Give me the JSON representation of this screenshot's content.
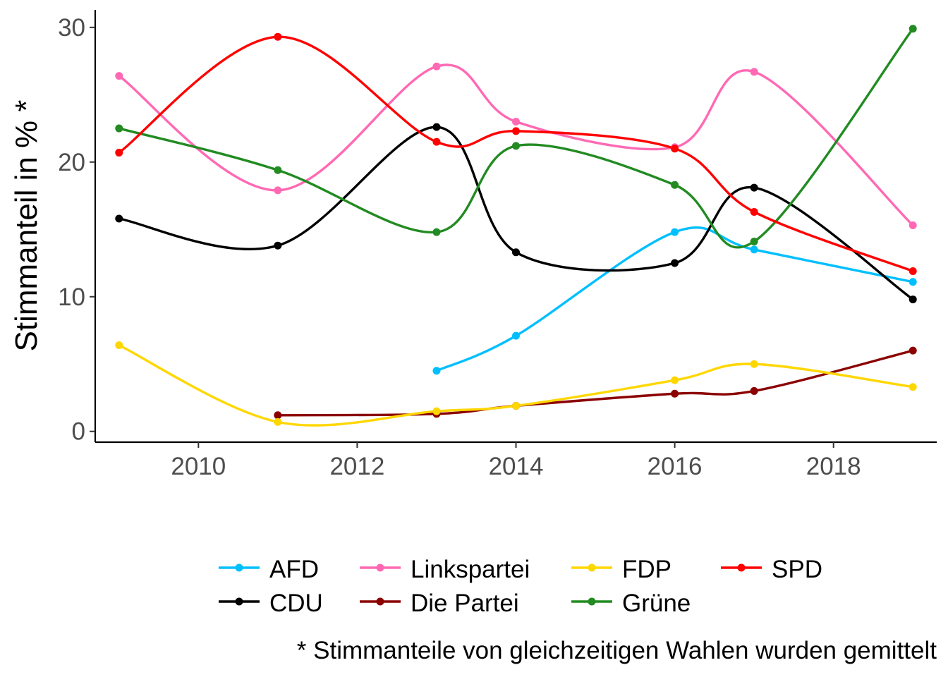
{
  "chart_data": {
    "type": "line",
    "title": "",
    "xlabel": "",
    "ylabel": "Stimmanteil in % *",
    "caption": "* Stimmanteile von gleichzeitigen Wahlen wurden gemittelt",
    "xlim": [
      2008.7,
      2019.3
    ],
    "ylim": [
      -0.8,
      31.3
    ],
    "x_ticks": [
      2010,
      2012,
      2014,
      2016,
      2018
    ],
    "y_ticks": [
      0,
      10,
      20,
      30
    ],
    "grid": false,
    "legend_position": "bottom",
    "series": [
      {
        "name": "AFD",
        "color": "#00bfff",
        "points": [
          [
            2013,
            4.5
          ],
          [
            2014,
            7.1
          ],
          [
            2016,
            14.8
          ],
          [
            2017,
            13.5
          ],
          [
            2019,
            11.1
          ]
        ]
      },
      {
        "name": "CDU",
        "color": "#000000",
        "points": [
          [
            2009,
            15.8
          ],
          [
            2011,
            13.8
          ],
          [
            2013,
            22.6
          ],
          [
            2014,
            13.3
          ],
          [
            2016,
            12.5
          ],
          [
            2017,
            18.1
          ],
          [
            2019,
            9.8
          ]
        ]
      },
      {
        "name": "Linkspartei",
        "color": "#ff69b4",
        "points": [
          [
            2009,
            26.4
          ],
          [
            2011,
            17.9
          ],
          [
            2013,
            27.1
          ],
          [
            2014,
            23.0
          ],
          [
            2016,
            21.1
          ],
          [
            2017,
            26.7
          ],
          [
            2019,
            15.3
          ]
        ]
      },
      {
        "name": "Die Partei",
        "color": "#8b0000",
        "points": [
          [
            2011,
            1.2
          ],
          [
            2013,
            1.3
          ],
          [
            2014,
            1.9
          ],
          [
            2016,
            2.8
          ],
          [
            2017,
            3.0
          ],
          [
            2019,
            6.0
          ]
        ]
      },
      {
        "name": "FDP",
        "color": "#ffd700",
        "points": [
          [
            2009,
            6.4
          ],
          [
            2011,
            0.7
          ],
          [
            2013,
            1.5
          ],
          [
            2014,
            1.9
          ],
          [
            2016,
            3.8
          ],
          [
            2017,
            5.0
          ],
          [
            2019,
            3.3
          ]
        ]
      },
      {
        "name": "Grüne",
        "color": "#228b22",
        "points": [
          [
            2009,
            22.5
          ],
          [
            2011,
            19.4
          ],
          [
            2013,
            14.8
          ],
          [
            2014,
            21.2
          ],
          [
            2016,
            18.3
          ],
          [
            2017,
            14.1
          ],
          [
            2019,
            29.9
          ]
        ]
      },
      {
        "name": "SPD",
        "color": "#ff0000",
        "points": [
          [
            2009,
            20.7
          ],
          [
            2011,
            29.3
          ],
          [
            2013,
            21.5
          ],
          [
            2014,
            22.3
          ],
          [
            2016,
            21.0
          ],
          [
            2017,
            16.3
          ],
          [
            2019,
            11.9
          ]
        ]
      }
    ],
    "legend_rows": [
      [
        "AFD",
        "Linkspartei",
        "FDP",
        "SPD"
      ],
      [
        "CDU",
        "Die Partei",
        "Grüne"
      ]
    ]
  }
}
